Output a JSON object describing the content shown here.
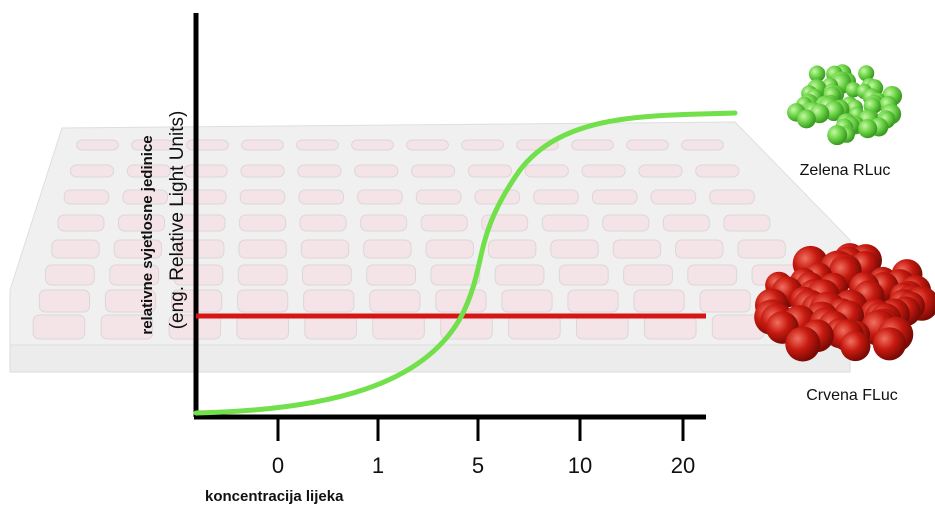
{
  "y_label": {
    "line1": "relativne svjetlosne jedinice",
    "line2": "(eng. Relative Light Units)"
  },
  "x_label": "koncentracija lijeka",
  "x_ticks": [
    "0",
    "1",
    "5",
    "10",
    "20"
  ],
  "legend": {
    "green": "Zelena RLuc",
    "red": "Crvena FLuc"
  }
}
